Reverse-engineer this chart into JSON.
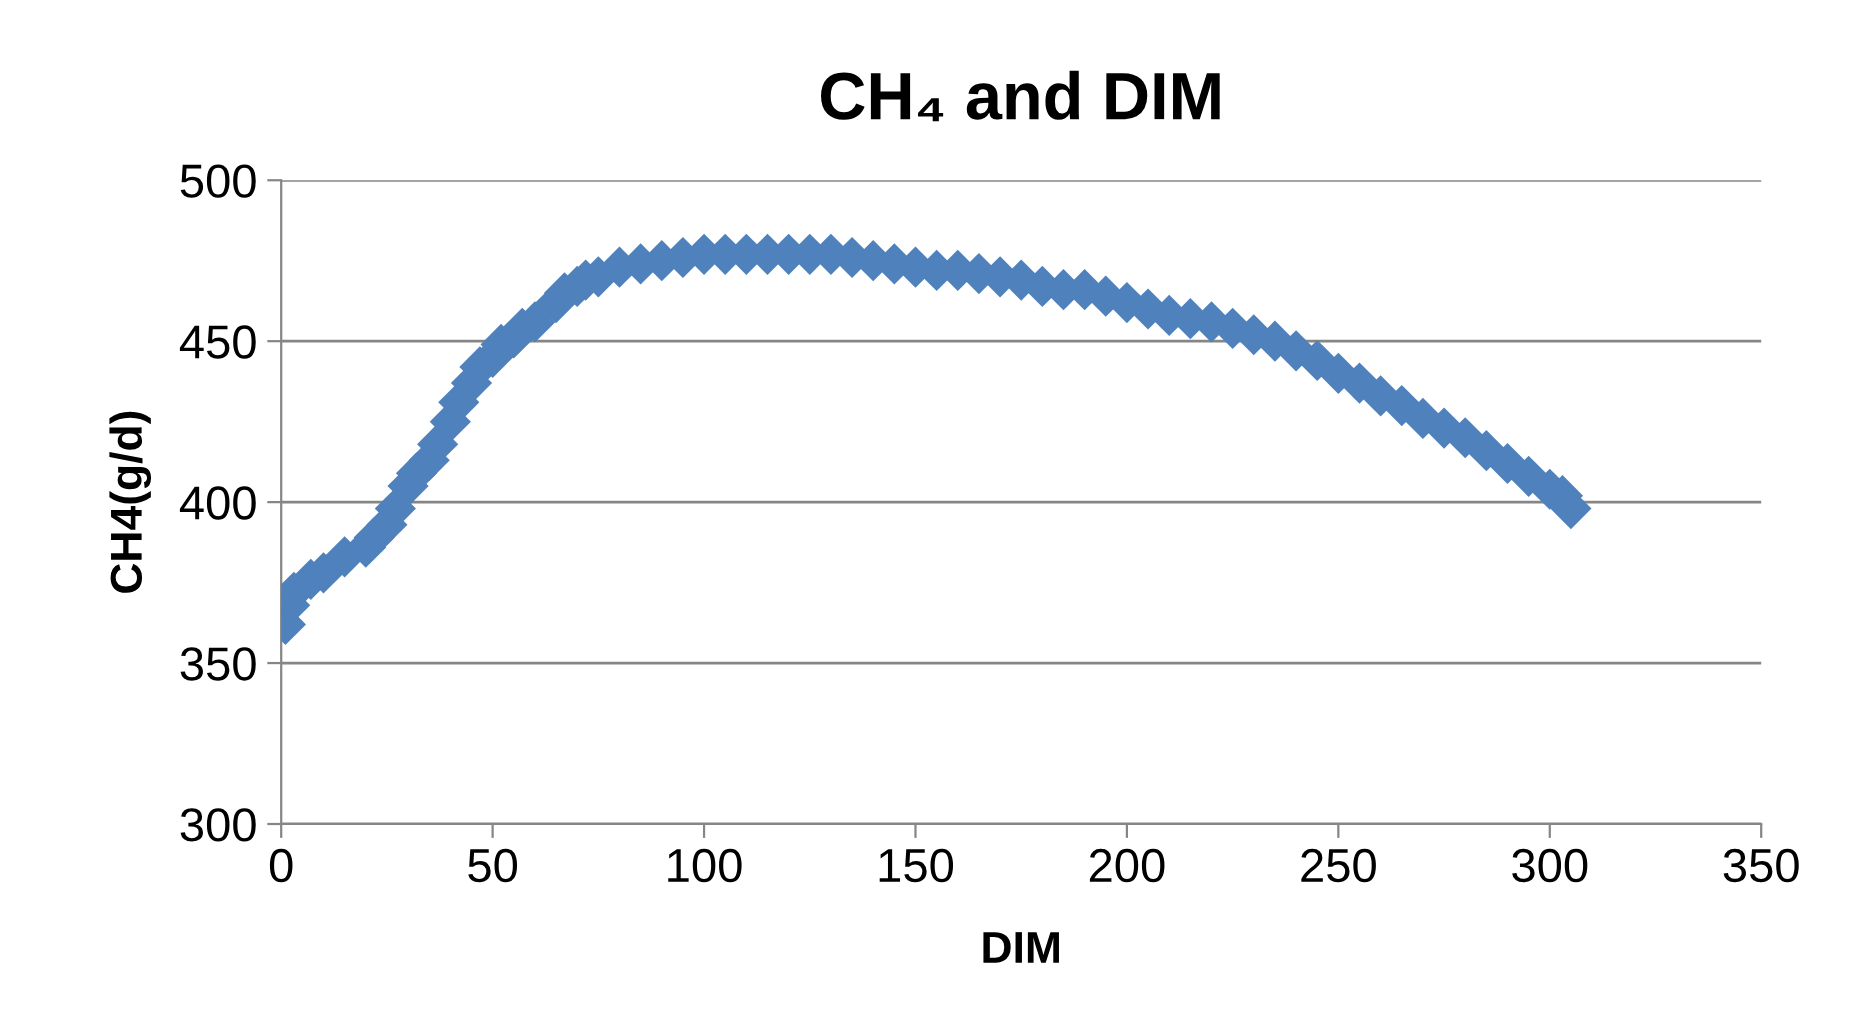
{
  "chart_data": {
    "type": "scatter",
    "title": "CH₄ and DIM",
    "xlabel": "DIM",
    "ylabel": "CH4(g/d)",
    "xlim": [
      0,
      350
    ],
    "xticks": [
      0,
      50,
      100,
      150,
      200,
      250,
      300,
      350
    ],
    "ylim": [
      300,
      500
    ],
    "yticks": [
      300,
      350,
      400,
      450,
      500
    ],
    "grid": "y",
    "marker": "diamond",
    "series": [
      {
        "color": "#4f81bd",
        "x": [
          1,
          2,
          3,
          7,
          10,
          15,
          20,
          22,
          25,
          27,
          30,
          32,
          35,
          37,
          40,
          42,
          45,
          47,
          50,
          52,
          55,
          57,
          60,
          65,
          67,
          70,
          72,
          75,
          80,
          85,
          90,
          95,
          100,
          105,
          110,
          115,
          120,
          125,
          130,
          135,
          140,
          145,
          150,
          155,
          160,
          165,
          170,
          175,
          180,
          185,
          190,
          195,
          200,
          205,
          210,
          215,
          220,
          225,
          230,
          235,
          240,
          245,
          250,
          255,
          260,
          265,
          270,
          275,
          280,
          285,
          290,
          295,
          300,
          303,
          305
        ],
        "values": [
          362,
          368,
          372,
          376,
          378,
          383,
          386,
          389,
          393,
          398,
          405,
          409,
          413,
          418,
          425,
          431,
          437,
          442,
          445,
          449,
          451,
          454,
          456,
          462,
          465,
          467,
          469,
          470,
          473,
          474,
          475,
          476,
          477,
          477,
          477,
          477,
          477,
          477,
          477,
          476,
          475,
          474,
          473,
          472,
          472,
          471,
          470,
          469,
          467,
          466,
          466,
          464,
          462,
          460,
          458,
          457,
          456,
          454,
          452,
          450,
          447,
          444,
          440,
          437,
          433,
          430,
          426,
          423,
          420,
          416,
          412,
          408,
          404,
          402,
          398
        ]
      }
    ]
  }
}
